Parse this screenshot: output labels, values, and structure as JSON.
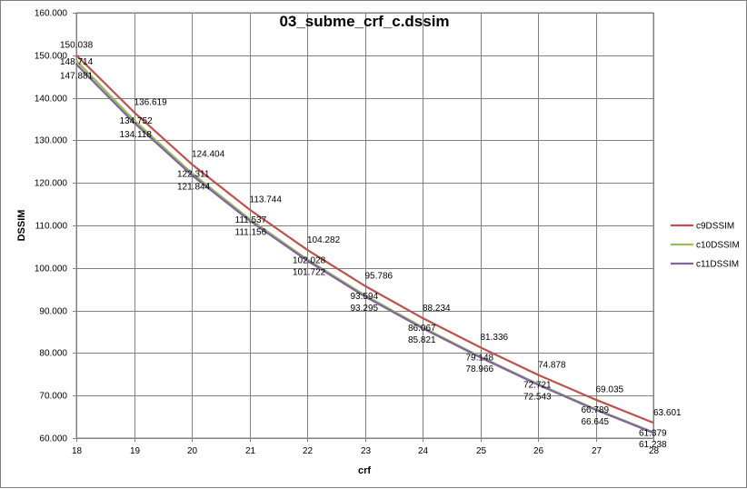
{
  "chart_data": {
    "type": "line",
    "title": "03_subme_crf_c.dssim",
    "xlabel": "crf",
    "ylabel": "DSSIM",
    "x": [
      18,
      19,
      20,
      21,
      22,
      23,
      24,
      25,
      26,
      27,
      28
    ],
    "x_tick_labels": [
      "18",
      "19",
      "20",
      "21",
      "22",
      "23",
      "24",
      "25",
      "26",
      "27",
      "28"
    ],
    "xlim": [
      18,
      28
    ],
    "ylim": [
      60,
      160
    ],
    "y_ticks": [
      60,
      70,
      80,
      90,
      100,
      110,
      120,
      130,
      140,
      150,
      160
    ],
    "y_tick_labels": [
      "60.000",
      "70.000",
      "80.000",
      "90.000",
      "100.000",
      "110.000",
      "120.000",
      "130.000",
      "140.000",
      "150.000",
      "160.000"
    ],
    "grid": true,
    "legend_position": "right",
    "series": [
      {
        "name": "c9DSSIM",
        "color": "#C0504D",
        "values": [
          150.038,
          136.619,
          124.404,
          113.744,
          104.282,
          95.786,
          88.234,
          81.336,
          74.878,
          69.035,
          63.601
        ],
        "labels": [
          "150.038",
          "136.619",
          "124.404",
          "113.744",
          "104.282",
          "95.786",
          "88.234",
          "81.336",
          "74.878",
          "69.035",
          "63.601"
        ]
      },
      {
        "name": "c10DSSIM",
        "color": "#9BBB59",
        "values": [
          148.714,
          134.752,
          122.311,
          111.537,
          102.028,
          93.594,
          86.067,
          79.148,
          72.721,
          66.789,
          61.379
        ],
        "labels": [
          "148.714",
          "134.752",
          "122.311",
          "111.537",
          "102.028",
          "93.594",
          "86.067",
          "79.148",
          "72.721",
          "66.789",
          "61.379"
        ]
      },
      {
        "name": "c11DSSIM",
        "color": "#8064A2",
        "values": [
          147.881,
          134.118,
          121.844,
          111.156,
          101.722,
          93.295,
          85.821,
          78.966,
          72.543,
          66.645,
          61.238
        ],
        "labels": [
          "147.881",
          "134.118",
          "121.844",
          "111.156",
          "101.722",
          "93.295",
          "85.821",
          "78.966",
          "72.543",
          "66.645",
          "61.238"
        ]
      }
    ]
  }
}
